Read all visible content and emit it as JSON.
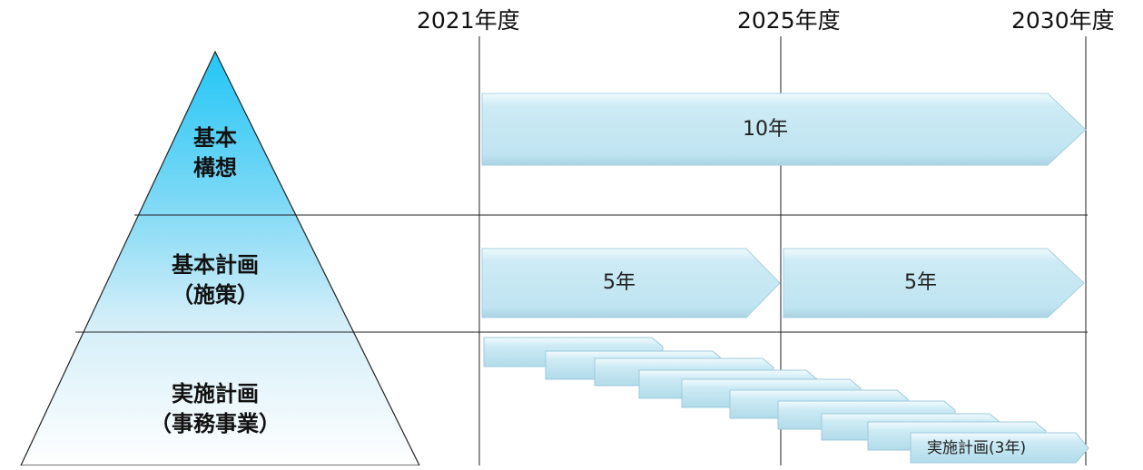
{
  "years": [
    "2021年度",
    "2025年度",
    "2030年度"
  ],
  "tiers": [
    {
      "line1": "基本",
      "line2": "構想"
    },
    {
      "line1": "基本計画",
      "line2": "（施策）"
    },
    {
      "line1": "実施計画",
      "line2": "（事務事業）"
    }
  ],
  "arrows": {
    "basic_concept": "10年",
    "basic_plan_first": "5年",
    "basic_plan_second": "5年"
  },
  "implementation_label": "実施計画(3年)",
  "colors": {
    "pyramid_top": "#25c8f5",
    "pyramid_bottom": "#ffffff",
    "arrow_fill": "#c6eaf4",
    "arrow_light": "#eefafd",
    "line": "#222222"
  }
}
